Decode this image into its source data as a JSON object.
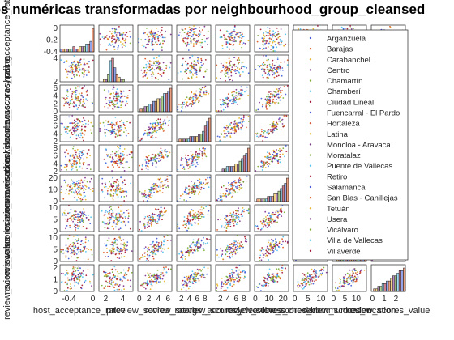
{
  "chart_data": {
    "type": "scatter",
    "subtype": "scatter-matrix",
    "title": "Variables numéricas transformadas por neighbourhood_group_cleansed",
    "variables": [
      "host_acceptance_rate",
      "price",
      "review_scores_rating",
      "review_scores_accuracy",
      "review_scores_cleanliness",
      "review_scores_checkin",
      "review_scores_communication",
      "review_scores_location",
      "review_scores_value"
    ],
    "diag_type": "histogram",
    "legend_placement": "inside-right",
    "groups": [
      {
        "name": "Arganzuela",
        "color": "#3b5bd6"
      },
      {
        "name": "Barajas",
        "color": "#d9541e"
      },
      {
        "name": "Carabanchel",
        "color": "#e6b125"
      },
      {
        "name": "Centro",
        "color": "#7e2f8e"
      },
      {
        "name": "Chamartín",
        "color": "#77ac30"
      },
      {
        "name": "Chamberí",
        "color": "#4dbeee"
      },
      {
        "name": "Ciudad Lineal",
        "color": "#a2142f"
      },
      {
        "name": "Fuencarral - El Pardo",
        "color": "#3b5bd6"
      },
      {
        "name": "Hortaleza",
        "color": "#d9541e"
      },
      {
        "name": "Latina",
        "color": "#e6b125"
      },
      {
        "name": "Moncloa - Aravaca",
        "color": "#7e2f8e"
      },
      {
        "name": "Moratalaz",
        "color": "#77ac30"
      },
      {
        "name": "Puente de Vallecas",
        "color": "#4dbeee"
      },
      {
        "name": "Retiro",
        "color": "#a2142f"
      },
      {
        "name": "Salamanca",
        "color": "#3b5bd6"
      },
      {
        "name": "San Blas - Canillejas",
        "color": "#d9541e"
      },
      {
        "name": "Tetuán",
        "color": "#e6b125"
      },
      {
        "name": "Usera",
        "color": "#7e2f8e"
      },
      {
        "name": "Vicálvaro",
        "color": "#77ac30"
      },
      {
        "name": "Villa de Vallecas",
        "color": "#4dbeee"
      },
      {
        "name": "Villaverde",
        "color": "#a2142f"
      }
    ],
    "ranges": [
      {
        "min": -0.55,
        "max": 0.02,
        "ticks": [
          -0.4,
          -0.2,
          0
        ],
        "tick_labels": [
          "-0.4",
          "",
          "0"
        ]
      },
      {
        "min": 1.2,
        "max": 5.2,
        "ticks": [
          2,
          4
        ],
        "tick_labels": [
          "2",
          "4"
        ]
      },
      {
        "min": -0.3,
        "max": 6.8,
        "ticks": [
          0,
          2,
          4,
          6
        ],
        "tick_labels": [
          "0",
          "2",
          "4",
          "6"
        ]
      },
      {
        "min": 0.8,
        "max": 9.5,
        "ticks": [
          2,
          4,
          6,
          8
        ],
        "tick_labels": [
          "2",
          "4",
          "6",
          "8"
        ]
      },
      {
        "min": 0.8,
        "max": 9.5,
        "ticks": [
          2,
          4,
          6,
          8
        ],
        "tick_labels": [
          "2",
          "4",
          "6",
          "8"
        ]
      },
      {
        "min": -0.5,
        "max": 24,
        "ticks": [
          0,
          10,
          20
        ],
        "tick_labels": [
          "0",
          "10",
          "20"
        ]
      },
      {
        "min": -0.5,
        "max": 12.5,
        "ticks": [
          0,
          5,
          10
        ],
        "tick_labels": [
          "0",
          "5",
          "10"
        ]
      },
      {
        "min": -0.5,
        "max": 14.5,
        "ticks": [
          0,
          5,
          10
        ],
        "tick_labels": [
          "0",
          "5",
          "10"
        ]
      },
      {
        "min": -0.1,
        "max": 2.8,
        "ticks": [
          0,
          1,
          2
        ],
        "tick_labels": [
          "0",
          "1",
          "2"
        ]
      }
    ],
    "y_tick_labels": [
      [
        "0",
        "-0.2",
        "-0.4"
      ],
      [
        "4",
        "2"
      ],
      [
        "6",
        "4",
        "2",
        "0"
      ],
      [
        "8",
        "6",
        "4",
        "2"
      ],
      [
        "8",
        "6",
        "4",
        "2"
      ],
      [
        "20",
        "10",
        "0"
      ],
      [
        "10",
        "5",
        "0"
      ],
      [
        "10",
        "5",
        "0"
      ],
      [
        "2",
        "1",
        "0"
      ]
    ],
    "diag_histograms": [
      [
        1,
        1,
        1,
        1,
        1,
        1,
        2,
        1,
        1,
        2,
        2,
        2,
        3,
        3,
        4,
        9
      ],
      [
        0,
        0,
        1,
        1,
        3,
        9,
        10,
        6,
        3,
        2,
        1,
        1,
        0,
        0,
        0,
        0
      ],
      [
        0,
        1,
        1,
        2,
        2,
        3,
        3,
        4,
        4,
        5,
        5,
        6,
        7,
        7,
        8,
        9
      ],
      [
        0,
        1,
        1,
        1,
        1,
        1,
        2,
        2,
        2,
        2,
        3,
        3,
        4,
        6,
        8,
        9
      ],
      [
        0,
        0,
        0,
        1,
        1,
        2,
        2,
        2,
        2,
        3,
        3,
        4,
        5,
        6,
        7,
        9
      ],
      [
        0,
        1,
        1,
        1,
        1,
        1,
        2,
        2,
        2,
        3,
        3,
        4,
        5,
        6,
        7,
        9
      ],
      [
        0,
        1,
        2,
        2,
        2,
        2,
        2,
        3,
        3,
        3,
        3,
        4,
        5,
        6,
        8,
        9
      ],
      [
        0,
        0,
        1,
        1,
        1,
        1,
        2,
        2,
        2,
        3,
        3,
        4,
        5,
        6,
        7,
        9
      ],
      [
        0,
        1,
        1,
        2,
        2,
        3,
        3,
        4,
        4,
        5,
        6,
        6,
        7,
        8,
        8,
        9
      ]
    ]
  }
}
